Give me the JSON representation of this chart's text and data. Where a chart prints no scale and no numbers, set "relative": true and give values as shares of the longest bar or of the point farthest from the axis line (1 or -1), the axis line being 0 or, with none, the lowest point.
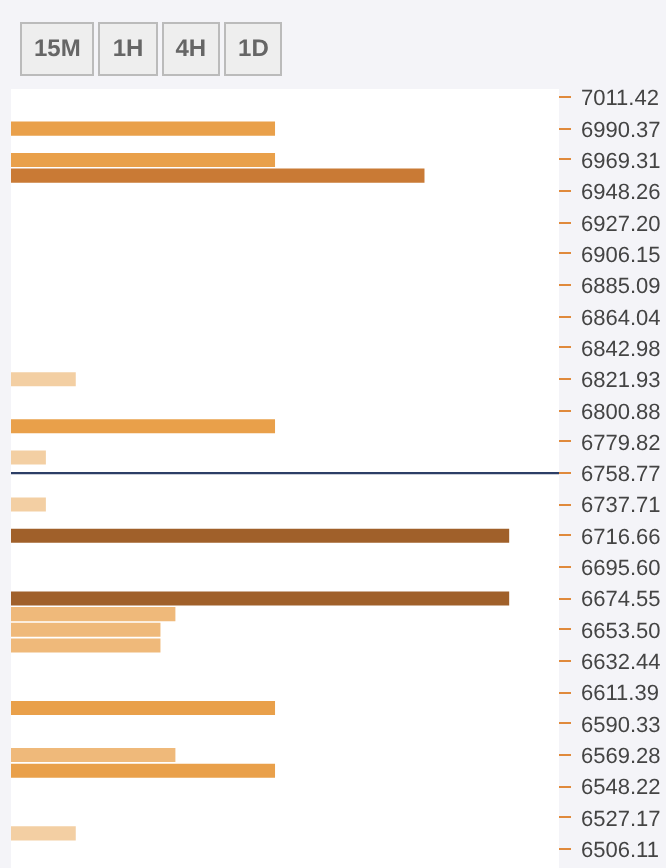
{
  "chart_data": {
    "type": "bar",
    "orientation": "horizontal",
    "relative": true,
    "annotations": [
      "15M",
      "1H",
      "4H",
      "1D"
    ],
    "x": [
      6990.37,
      6969.31,
      6958.78,
      6821.93,
      6790.35,
      6769.3,
      6737.71,
      6716.66,
      6674.55,
      6664.03,
      6653.5,
      6642.97,
      6600.86,
      6569.28,
      6558.75,
      6516.64
    ],
    "values": [
      0.53,
      0.53,
      0.83,
      0.13,
      0.53,
      0.07,
      0.07,
      1,
      1,
      0.33,
      0.3,
      0.3,
      0.53,
      0.33,
      0.53,
      0.13
    ],
    "colors": [
      "#e9a04a",
      "#e9a04a",
      "#c97a35",
      "#f3cfa3",
      "#e9a04a",
      "#f3cfa3",
      "#f3cfa3",
      "#a0602a",
      "#a0602a",
      "#efb97a",
      "#efb97a",
      "#efb97a",
      "#e9a04a",
      "#efb97a",
      "#e9a04a",
      "#f3cfa3"
    ],
    "ylim": [
      6490,
      7017
    ],
    "yticks": [
      7011.42,
      6990.37,
      6969.31,
      6948.26,
      {
        "value": 6927.2,
        "label": "6927.20"
      },
      6906.15,
      6885.09,
      6864.04,
      6842.98,
      6821.93,
      6800.88,
      6779.82,
      6758.77,
      6737.71,
      6716.66,
      {
        "value": 6695.6,
        "label": "6695.60"
      },
      6674.55,
      {
        "value": 6653.5,
        "label": "6653.50"
      },
      6632.44,
      6611.39,
      6590.33,
      6569.28,
      6548.22,
      6527.17,
      6506.11
    ],
    "ref_lines": [
      {
        "axis": "y",
        "value": 6758.77,
        "color": "#2c3e66"
      }
    ]
  }
}
